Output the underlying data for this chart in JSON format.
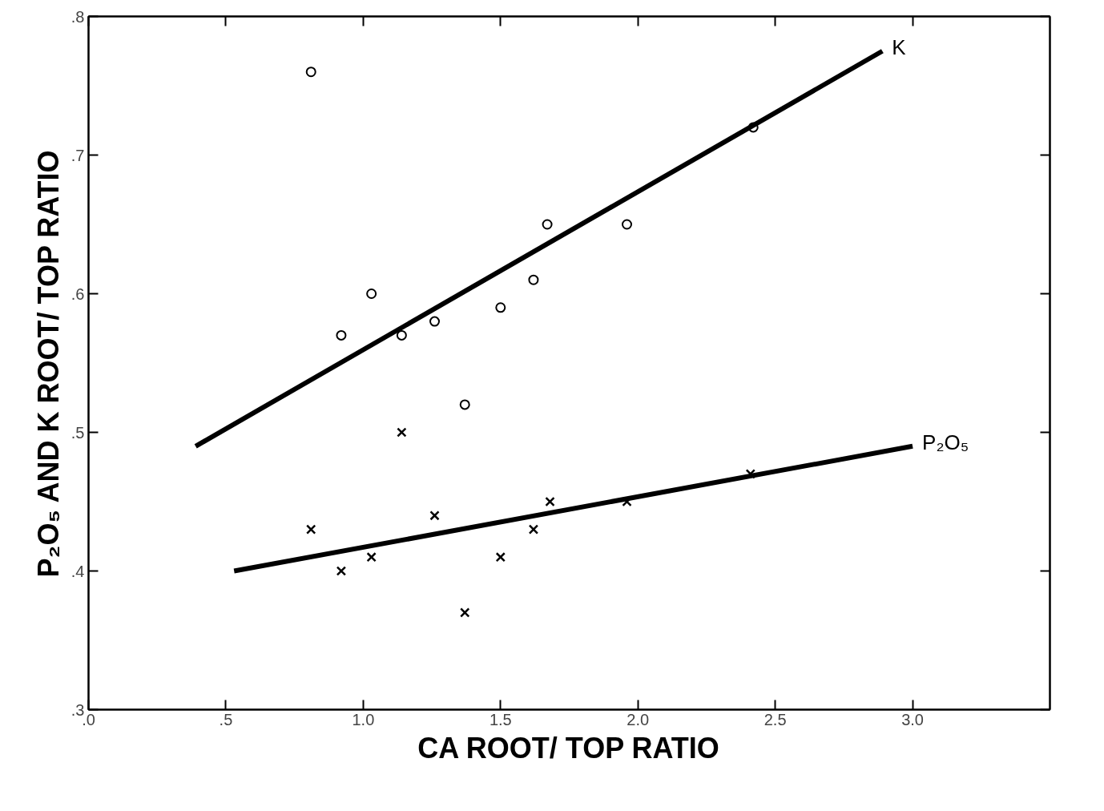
{
  "chart_data": {
    "type": "scatter",
    "xlabel": "CA ROOT/ TOP RATIO",
    "ylabel": "P₂O₅ AND K ROOT/ TOP RATIO",
    "xlim": [
      0,
      3.5
    ],
    "ylim": [
      0.3,
      0.8
    ],
    "xticks": [
      {
        "value": 0,
        "label": ".0"
      },
      {
        "value": 0.5,
        "label": ".5"
      },
      {
        "value": 1.0,
        "label": "1.0"
      },
      {
        "value": 1.5,
        "label": "1.5"
      },
      {
        "value": 2.0,
        "label": "2.0"
      },
      {
        "value": 2.5,
        "label": "2.5"
      },
      {
        "value": 3.0,
        "label": "3.0"
      }
    ],
    "yticks": [
      {
        "value": 0.3,
        "label": ".3"
      },
      {
        "value": 0.4,
        "label": ".4"
      },
      {
        "value": 0.5,
        "label": ".5"
      },
      {
        "value": 0.6,
        "label": ".6"
      },
      {
        "value": 0.7,
        "label": ".7"
      },
      {
        "value": 0.8,
        "label": ".8"
      }
    ],
    "grid": false,
    "series": [
      {
        "marker": "circle",
        "color": "#000000",
        "x": [
          0.81,
          0.92,
          1.03,
          1.14,
          1.26,
          1.37,
          1.5,
          1.62,
          1.67,
          1.96,
          2.42
        ],
        "values": [
          0.76,
          0.57,
          0.6,
          0.57,
          0.58,
          0.52,
          0.59,
          0.61,
          0.65,
          0.65,
          0.72
        ]
      },
      {
        "marker": "cross",
        "color": "#000000",
        "x": [
          0.81,
          0.92,
          1.03,
          1.14,
          1.26,
          1.37,
          1.5,
          1.62,
          1.68,
          1.96,
          2.41
        ],
        "values": [
          0.43,
          0.4,
          0.41,
          0.5,
          0.44,
          0.37,
          0.41,
          0.43,
          0.45,
          0.45,
          0.47
        ]
      },
      {
        "type": "line",
        "name": "K",
        "color": "#000000",
        "line_style": "solid",
        "x": [
          0.39,
          2.89
        ],
        "values": [
          0.49,
          0.775
        ]
      },
      {
        "type": "line",
        "name": "P₂O₅",
        "color": "#000000",
        "line_style": "solid",
        "x": [
          0.53,
          3.0
        ],
        "values": [
          0.4,
          0.49
        ]
      }
    ]
  }
}
